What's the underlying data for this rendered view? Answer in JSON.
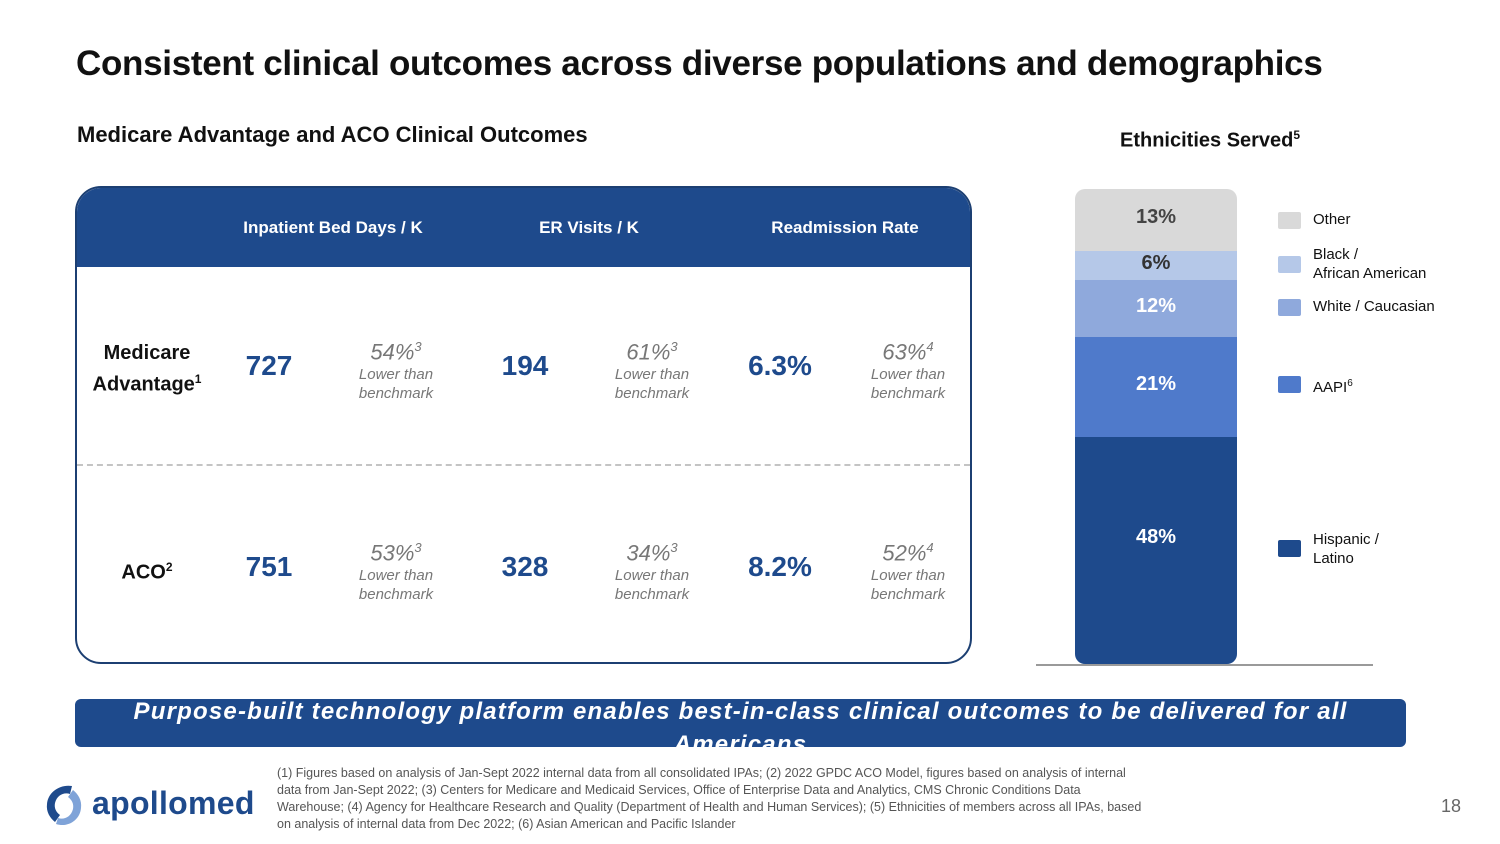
{
  "title": "Consistent clinical outcomes across diverse populations and demographics",
  "subtitle": "Medicare Advantage and ACO Clinical Outcomes",
  "columns": [
    "Inpatient Bed Days / K",
    "ER Visits / K",
    "Readmission Rate"
  ],
  "rows": [
    {
      "label_main": "Medicare Advantage",
      "label_sup": "1",
      "cells": [
        {
          "value": "727",
          "pct": "54%",
          "pct_sup": "3",
          "line1": "Lower than",
          "line2": "benchmark"
        },
        {
          "value": "194",
          "pct": "61%",
          "pct_sup": "3",
          "line1": "Lower than",
          "line2": "benchmark"
        },
        {
          "value": "6.3%",
          "pct": "63%",
          "pct_sup": "4",
          "line1": "Lower than",
          "line2": "benchmark"
        }
      ]
    },
    {
      "label_main": "ACO",
      "label_sup": "2",
      "cells": [
        {
          "value": "751",
          "pct": "53%",
          "pct_sup": "3",
          "line1": "Lower than",
          "line2": "benchmark"
        },
        {
          "value": "328",
          "pct": "34%",
          "pct_sup": "3",
          "line1": "Lower than",
          "line2": "benchmark"
        },
        {
          "value": "8.2%",
          "pct": "52%",
          "pct_sup": "4",
          "line1": "Lower than",
          "line2": "benchmark"
        }
      ]
    }
  ],
  "ethnicity": {
    "title": "Ethnicities Served",
    "title_sup": "5",
    "segments": [
      {
        "label": "13%",
        "value": 13,
        "color": "#d9d9d9",
        "text_color": "#444444"
      },
      {
        "label": "6%",
        "value": 6,
        "color": "#b5c8e8",
        "text_color": "#333333"
      },
      {
        "label": "12%",
        "value": 12,
        "color": "#8fa9dc",
        "text_color": "#ffffff"
      },
      {
        "label": "21%",
        "value": 21,
        "color": "#4f7acb",
        "text_color": "#ffffff"
      },
      {
        "label": "48%",
        "value": 48,
        "color": "#1e4a8c",
        "text_color": "#ffffff"
      }
    ],
    "legend": [
      {
        "text": "Other",
        "sup": "",
        "color": "#d9d9d9"
      },
      {
        "text": "Black /",
        "text2": "African American",
        "sup": "",
        "color": "#b5c8e8"
      },
      {
        "text": "White / Caucasian",
        "sup": "",
        "color": "#8fa9dc"
      },
      {
        "text": "AAPI",
        "sup": "6",
        "color": "#4f7acb"
      },
      {
        "text": "Hispanic /",
        "text2": "Latino",
        "sup": "",
        "color": "#1e4a8c"
      }
    ]
  },
  "banner": "Purpose-built technology platform enables best-in-class clinical outcomes to be delivered for all Americans",
  "logo": "apollomed",
  "footnote": "(1) Figures based on analysis of Jan-Sept 2022 internal data from all consolidated IPAs;  (2) 2022 GPDC ACO Model, figures based on analysis of internal data from Jan-Sept 2022; (3) Centers for Medicare and Medicaid Services, Office of Enterprise Data and Analytics, CMS Chronic Conditions Data Warehouse; (4) Agency for Healthcare Research and Quality (Department of Health and Human Services); (5) Ethnicities of members across all IPAs, based on analysis of internal data from Dec 2022; (6) Asian American and Pacific Islander",
  "page_number": "18"
}
